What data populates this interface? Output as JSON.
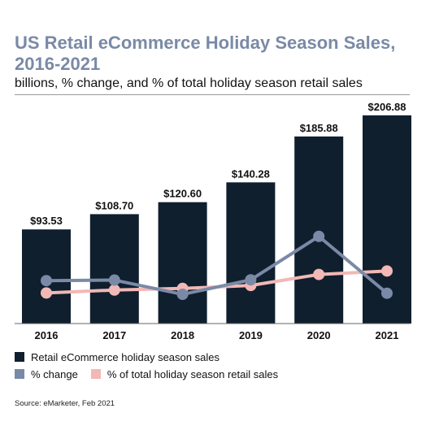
{
  "chart_data": {
    "type": "bar",
    "title": "US Retail eCommerce Holiday Season Sales, 2016-2021",
    "subtitle": "billions, % change, and % of total holiday season retail sales",
    "categories": [
      "2016",
      "2017",
      "2018",
      "2019",
      "2020",
      "2021"
    ],
    "bar_labels": [
      "$93.53",
      "$108.70",
      "$120.60",
      "$140.28",
      "$185.88",
      "$206.88"
    ],
    "series": [
      {
        "name": "Retail eCommerce holiday season sales",
        "kind": "bar",
        "color": "#0f1f2e",
        "values": [
          93.53,
          108.7,
          120.6,
          140.28,
          185.88,
          206.88
        ]
      },
      {
        "name": "% change",
        "kind": "line",
        "color": "#7a8aa6",
        "values": [
          16.0,
          16.2,
          10.9,
          16.3,
          32.5,
          11.3
        ]
      },
      {
        "name": "% of total holiday season retail sales",
        "kind": "line",
        "color": "#f2b8b5",
        "values": [
          11.4,
          12.5,
          13.1,
          14.2,
          18.3,
          19.6
        ]
      }
    ],
    "ylim": [
      0,
      210
    ],
    "line_ylim": [
      0,
      60
    ],
    "xlabel": "",
    "ylabel": "",
    "grid": false,
    "legend_position": "bottom-left",
    "source": "Source: eMarketer, Feb 2021"
  }
}
